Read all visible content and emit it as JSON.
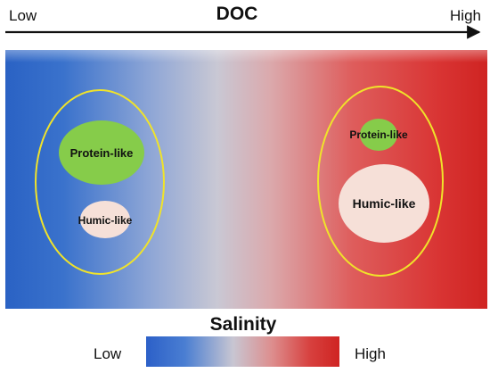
{
  "doc_axis": {
    "title": "DOC",
    "low_label": "Low",
    "high_label": "High"
  },
  "left_group": {
    "protein_label": "Protein-like",
    "humic_label": "Humic-like"
  },
  "right_group": {
    "protein_label": "Protein-like",
    "humic_label": "Humic-like"
  },
  "salinity_legend": {
    "title": "Salinity",
    "low_label": "Low",
    "high_label": "High"
  },
  "colors": {
    "low": "#2f68c8",
    "mid": "#c7c4d0",
    "high": "#d42a28",
    "protein_fill": "#86cc4a",
    "humic_fill": "#f6e0d8",
    "group_outline": "#f0e32a",
    "arrow": "#111111"
  }
}
